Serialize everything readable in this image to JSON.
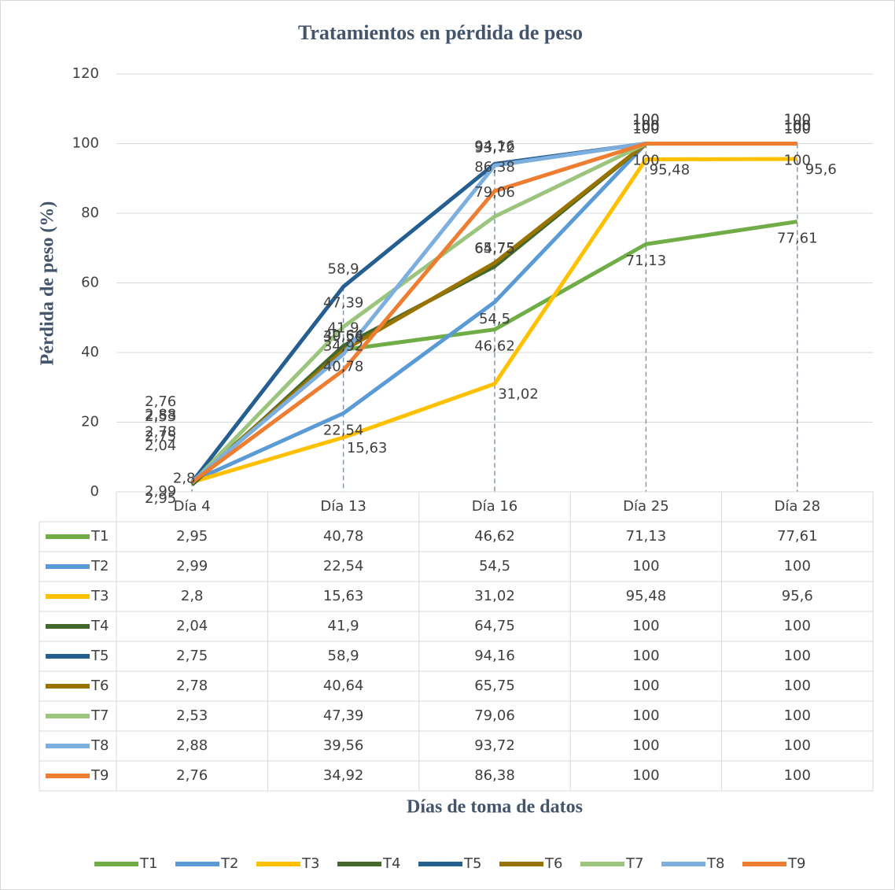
{
  "chart_data": {
    "type": "line",
    "title": "Tratamientos en pérdida de peso",
    "y_label": "Pérdida de peso (%)",
    "x_label": "Días de toma de datos",
    "categories": [
      "Día 4",
      "Día 13",
      "Día 16",
      "Día 25",
      "Día 28"
    ],
    "ylim": [
      0,
      120
    ],
    "yticks": [
      0,
      20,
      40,
      60,
      80,
      100,
      120
    ],
    "grid": true,
    "legend": "bottom",
    "series": [
      {
        "name": "T1",
        "color": "#70ad47",
        "values": [
          2.95,
          40.78,
          46.62,
          71.13,
          77.61
        ],
        "value_labels": [
          "2,95",
          "40,78",
          "46,62",
          "71,13",
          "77,61"
        ]
      },
      {
        "name": "T2",
        "color": "#5b9bd5",
        "values": [
          2.99,
          22.54,
          54.5,
          100,
          100
        ],
        "value_labels": [
          "2,99",
          "22,54",
          "54,5",
          "100",
          "100"
        ]
      },
      {
        "name": "T3",
        "color": "#ffc000",
        "values": [
          2.8,
          15.63,
          31.02,
          95.48,
          95.6
        ],
        "value_labels": [
          "2,8",
          "15,63",
          "31,02",
          "95,48",
          "95,6"
        ]
      },
      {
        "name": "T4",
        "color": "#43682b",
        "values": [
          2.04,
          41.9,
          64.75,
          100,
          100
        ],
        "value_labels": [
          "2,04",
          "41,9",
          "64,75",
          "100",
          "100"
        ]
      },
      {
        "name": "T5",
        "color": "#255e91",
        "values": [
          2.75,
          58.9,
          94.16,
          100,
          100
        ],
        "value_labels": [
          "2,75",
          "58,9",
          "94,16",
          "100",
          "100"
        ]
      },
      {
        "name": "T6",
        "color": "#997300",
        "values": [
          2.78,
          40.64,
          65.75,
          100,
          100
        ],
        "value_labels": [
          "2,78",
          "40,64",
          "65,75",
          "100",
          "100"
        ]
      },
      {
        "name": "T7",
        "color": "#9bc57d",
        "values": [
          2.53,
          47.39,
          79.06,
          100,
          100
        ],
        "value_labels": [
          "2,53",
          "47,39",
          "79,06",
          "100",
          "100"
        ]
      },
      {
        "name": "T8",
        "color": "#7cafdd",
        "values": [
          2.88,
          39.56,
          93.72,
          100,
          100
        ],
        "value_labels": [
          "2,88",
          "39,56",
          "93,72",
          "100",
          "100"
        ]
      },
      {
        "name": "T9",
        "color": "#ed7d31",
        "values": [
          2.76,
          34.92,
          86.38,
          100,
          100
        ],
        "value_labels": [
          "2,76",
          "34,92",
          "86,38",
          "100",
          "100"
        ]
      }
    ]
  }
}
